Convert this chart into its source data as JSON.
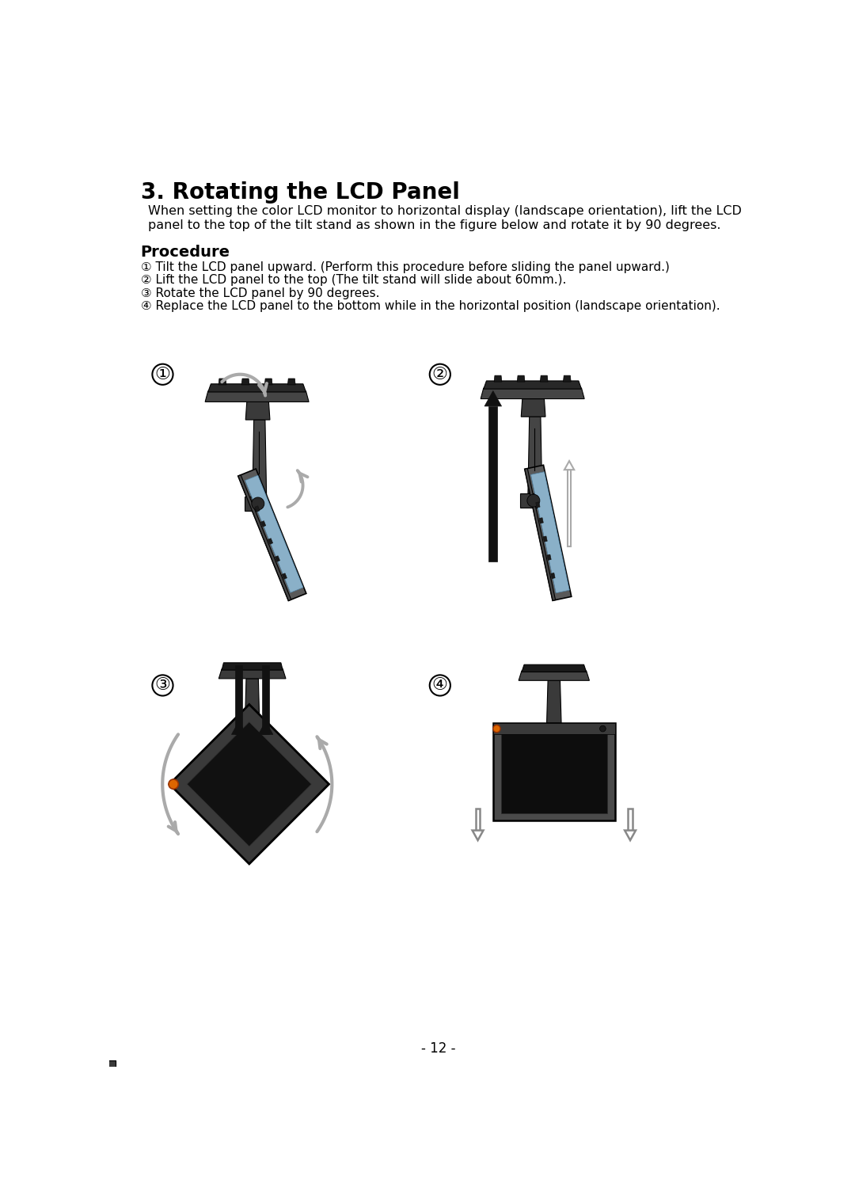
{
  "title": "3. Rotating the LCD Panel",
  "desc1": "When setting the color LCD monitor to horizontal display (landscape orientation), lift the LCD",
  "desc2": "panel to the top of the tilt stand as shown in the figure below and rotate it by 90 degrees.",
  "proc_title": "Procedure",
  "steps": [
    "① Tilt the LCD panel upward. (Perform this procedure before sliding the panel upward.)",
    "② Lift the LCD panel to the top (The tilt stand will slide about 60mm.).",
    "③ Rotate the LCD panel by 90 degrees.",
    "④ Replace the LCD panel to the bottom while in the horizontal position (landscape orientation)."
  ],
  "labels": [
    "①",
    "②",
    "③",
    "④"
  ],
  "page_number": "- 12 -",
  "bg": "#ffffff",
  "fg": "#000000",
  "dark": "#3a3a3a",
  "mid": "#555555",
  "light_port": "#8ab0c8",
  "port_dark": "#222222",
  "arrow_gray": "#aaaaaa",
  "orange": "#dd6600"
}
